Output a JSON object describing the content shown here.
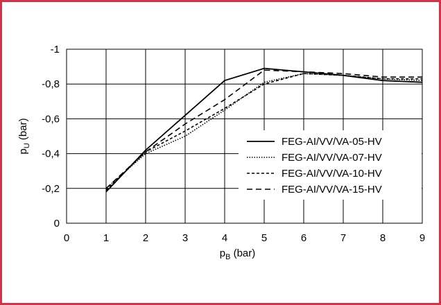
{
  "chart_data": {
    "type": "line",
    "xlabel": "p",
    "xlabel_sub": "B",
    "xlabel_unit": " (bar)",
    "ylabel": "p",
    "ylabel_sub": "U",
    "ylabel_unit": " (bar)",
    "xlim": [
      0,
      9
    ],
    "ylim": [
      0,
      -1
    ],
    "x_ticks": [
      "0",
      "1",
      "2",
      "3",
      "4",
      "5",
      "6",
      "7",
      "8",
      "9"
    ],
    "y_ticks": [
      "0",
      "-0,2",
      "-0,4",
      "-0,6",
      "-0,8",
      "-1"
    ],
    "grid": true,
    "legend_position": "bottom-right",
    "series": [
      {
        "name": "FEG-AI/VV/VA-05-HV",
        "style": "solid",
        "x": [
          1,
          2,
          3,
          4,
          5,
          6,
          7,
          8,
          9
        ],
        "y": [
          -0.18,
          -0.42,
          -0.62,
          -0.82,
          -0.89,
          -0.87,
          -0.85,
          -0.82,
          -0.81
        ]
      },
      {
        "name": "FEG-AI/VV/VA-07-HV",
        "style": "dotted",
        "x": [
          1,
          2,
          3,
          4,
          5,
          6,
          7,
          8,
          9
        ],
        "y": [
          -0.2,
          -0.4,
          -0.5,
          -0.65,
          -0.81,
          -0.86,
          -0.85,
          -0.83,
          -0.82
        ]
      },
      {
        "name": "FEG-AI/VV/VA-10-HV",
        "style": "dashed-short",
        "x": [
          1,
          2,
          3,
          4,
          5,
          6,
          7,
          8,
          9
        ],
        "y": [
          -0.19,
          -0.41,
          -0.53,
          -0.66,
          -0.8,
          -0.86,
          -0.85,
          -0.83,
          -0.83
        ]
      },
      {
        "name": "FEG-AI/VV/VA-15-HV",
        "style": "dashed-long",
        "x": [
          1,
          2,
          3,
          4,
          5,
          6,
          7,
          8,
          9
        ],
        "y": [
          -0.2,
          -0.41,
          -0.57,
          -0.71,
          -0.88,
          -0.87,
          -0.86,
          -0.84,
          -0.84
        ]
      }
    ]
  },
  "colors": {
    "frame_border": "#d2334a",
    "lines": "#000000"
  }
}
